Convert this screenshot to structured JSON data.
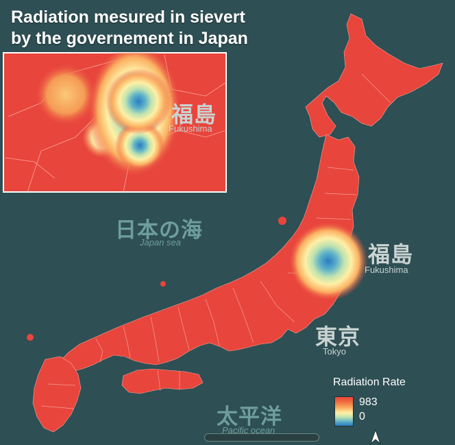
{
  "title": {
    "line1": "Radiation mesured in sievert",
    "line2": "by the governement in Japan"
  },
  "labels": {
    "fukushima_jp": "福島",
    "fukushima_en": "Fukushima",
    "tokyo_jp": "東京",
    "tokyo_en": "Tokyo",
    "japan_sea_jp": "日本の海",
    "japan_sea_en": "Japan sea",
    "pacific_jp": "太平洋",
    "pacific_en": "Pacific ocean"
  },
  "inset": {
    "fukushima_jp": "福島",
    "fukushima_en": "Fukushima"
  },
  "legend": {
    "title": "Radiation Rate",
    "max": "983",
    "min": "0"
  },
  "colors": {
    "sea": "#2e4f54",
    "land": "#e8453c",
    "hotspot_high": "#2a7cbf",
    "hotspot_mid": "#fef0a6"
  },
  "icons": [
    "north-arrow-icon"
  ]
}
